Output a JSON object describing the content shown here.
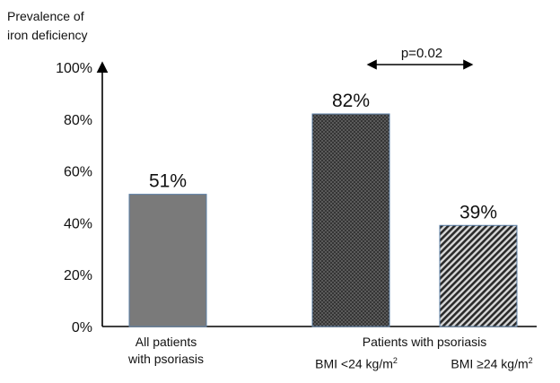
{
  "chart_data": {
    "type": "bar",
    "ylabel_lines": [
      "Prevalence of",
      "iron deficiency"
    ],
    "ylim": [
      0,
      100
    ],
    "yticks": [
      0,
      20,
      40,
      60,
      80,
      100
    ],
    "ytick_labels": [
      "0%",
      "20%",
      "40%",
      "60%",
      "80%",
      "100%"
    ],
    "bars": [
      {
        "category": "All patients with psoriasis",
        "value": 51,
        "label": "51%",
        "color": "#7a7a7a",
        "pattern": "solid"
      },
      {
        "category": "BMI <24 kg/m²",
        "value": 82,
        "label": "82%",
        "color": "#2e2e2e",
        "pattern": "dots"
      },
      {
        "category": "BMI ≥24 kg/m²",
        "value": 39,
        "label": "39%",
        "color": "#555555",
        "pattern": "diagonal"
      }
    ],
    "category_labels": {
      "all_line1": "All patients",
      "all_line2": "with psoriasis",
      "group_title": "Patients with psoriasis",
      "sub1": "BMI <24 kg/m",
      "sub2": "BMI ≥24  kg/m",
      "superscript": "2"
    },
    "annotation": {
      "text": "p=0.02",
      "between": [
        "BMI <24 kg/m²",
        "BMI ≥24 kg/m²"
      ]
    },
    "bar_border_color": "#5b7fa6",
    "grid": false
  }
}
